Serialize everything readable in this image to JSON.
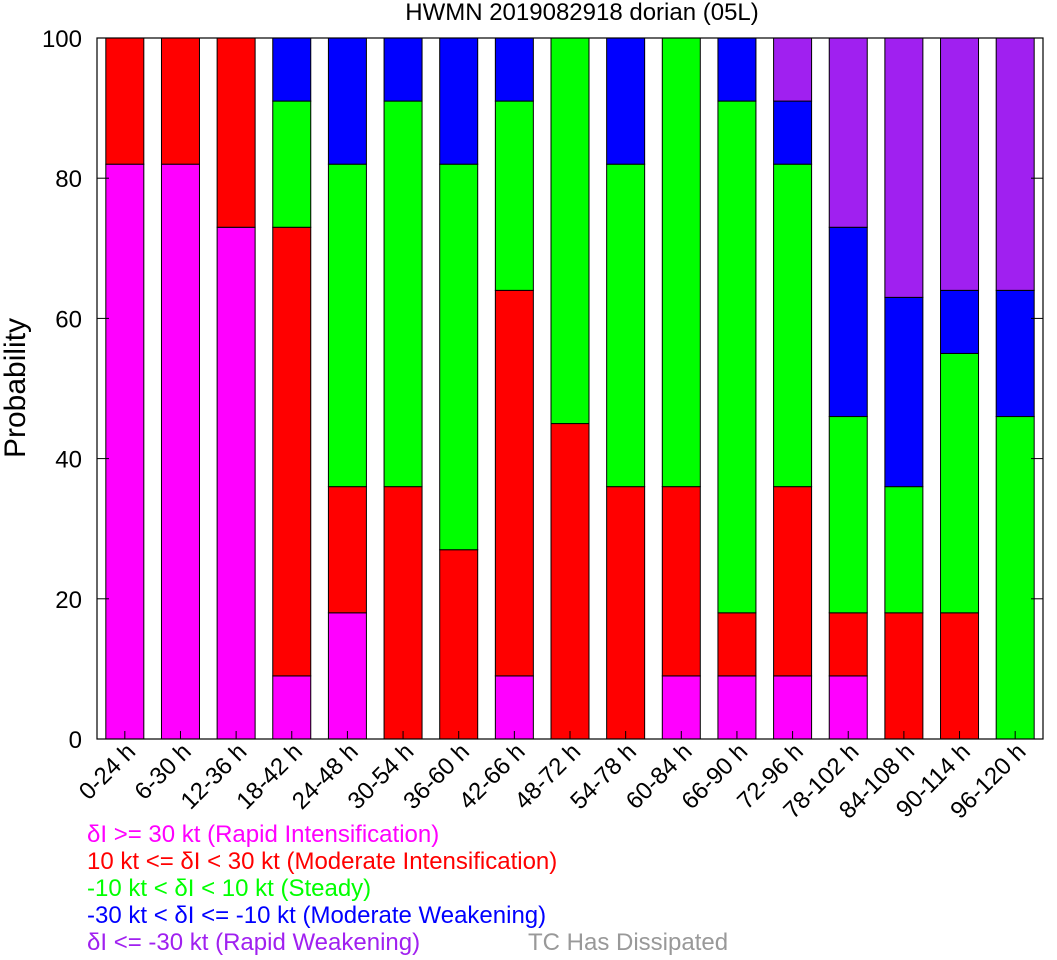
{
  "chart_data": {
    "type": "bar",
    "stacked": true,
    "title": "HWMN 2019082918 dorian (05L)",
    "xlabel": "",
    "ylabel": "Probability",
    "ylim": [
      0,
      100
    ],
    "yticks": [
      0,
      20,
      40,
      60,
      80,
      100
    ],
    "categories": [
      "0-24 h",
      "6-30 h",
      "12-36 h",
      "18-42 h",
      "24-48 h",
      "30-54 h",
      "36-60 h",
      "42-66 h",
      "48-72 h",
      "54-78 h",
      "60-84 h",
      "66-90 h",
      "72-96 h",
      "78-102 h",
      "84-108 h",
      "90-114 h",
      "96-120 h"
    ],
    "series": [
      {
        "name": "δI >= 30 kt (Rapid Intensification)",
        "color": "#ff00ff",
        "values": [
          82,
          82,
          73,
          9,
          18,
          0,
          0,
          9,
          0,
          0,
          9,
          9,
          9,
          9,
          0,
          0,
          0
        ]
      },
      {
        "name": "10 kt <= δI < 30 kt (Moderate Intensification)",
        "color": "#ff0000",
        "values": [
          18,
          18,
          27,
          64,
          18,
          36,
          27,
          55,
          45,
          36,
          27,
          9,
          27,
          9,
          18,
          18,
          0
        ]
      },
      {
        "name": "-10 kt < δI < 10 kt (Steady)",
        "color": "#00ff00",
        "values": [
          0,
          0,
          0,
          18,
          46,
          55,
          55,
          27,
          55,
          46,
          64,
          73,
          46,
          28,
          18,
          37,
          46
        ]
      },
      {
        "name": "-30 kt < δI <= -10 kt (Moderate Weakening)",
        "color": "#0000ff",
        "values": [
          0,
          0,
          0,
          9,
          18,
          9,
          18,
          9,
          0,
          18,
          0,
          9,
          9,
          27,
          27,
          9,
          18
        ]
      },
      {
        "name": "δI <= -30 kt (Rapid Weakening)",
        "color": "#a020f0",
        "values": [
          0,
          0,
          0,
          0,
          0,
          0,
          0,
          0,
          0,
          0,
          0,
          0,
          9,
          27,
          37,
          36,
          36
        ]
      }
    ],
    "extra_legend": {
      "name": "TC Has Dissipated",
      "color": "#999999"
    },
    "grid": false,
    "legend_placement": "bottom-left"
  }
}
